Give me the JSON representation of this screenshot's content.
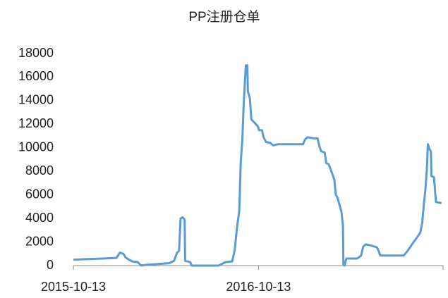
{
  "chart_data": {
    "type": "line",
    "title": "PP注册仓单",
    "x": [
      "2015-10-13",
      "2016-01-06",
      "2016-01-13",
      "2016-01-20",
      "2016-01-24",
      "2016-01-31",
      "2016-02-07",
      "2016-02-17",
      "2016-02-24",
      "2016-03-02",
      "2016-04-19",
      "2016-04-29",
      "2016-05-05",
      "2016-05-09",
      "2016-05-12",
      "2016-05-16",
      "2016-05-20",
      "2016-05-21",
      "2016-05-31",
      "2016-06-03",
      "2016-07-26",
      "2016-08-09",
      "2016-08-22",
      "2016-08-27",
      "2016-09-01",
      "2016-09-05",
      "2016-09-08",
      "2016-09-11",
      "2016-09-14",
      "2016-09-18",
      "2016-09-21",
      "2016-09-22",
      "2016-09-26",
      "2016-09-29",
      "2016-10-06",
      "2016-10-12",
      "2016-10-14",
      "2016-10-20",
      "2016-10-23",
      "2016-10-28",
      "2016-11-06",
      "2016-11-11",
      "2016-11-21",
      "2017-01-09",
      "2017-01-13",
      "2017-01-18",
      "2017-01-30",
      "2017-02-07",
      "2017-02-10",
      "2017-02-14",
      "2017-02-21",
      "2017-02-24",
      "2017-03-01",
      "2017-03-07",
      "2017-03-12",
      "2017-03-15",
      "2017-03-18",
      "2017-03-22",
      "2017-03-26",
      "2017-03-29",
      "2017-03-30",
      "2017-04-01",
      "2017-04-05",
      "2017-04-26",
      "2017-05-04",
      "2017-05-08",
      "2017-05-13",
      "2017-05-24",
      "2017-06-04",
      "2017-06-07",
      "2017-06-11",
      "2017-07-27",
      "2017-08-03",
      "2017-08-08",
      "2017-08-14",
      "2017-08-21",
      "2017-08-29",
      "2017-09-02",
      "2017-09-05",
      "2017-09-08",
      "2017-09-11",
      "2017-09-13",
      "2017-09-16",
      "2017-09-19",
      "2017-09-20",
      "2017-09-25",
      "2017-09-29",
      "2017-10-10"
    ],
    "series": [
      {
        "name": "PP注册仓单",
        "color": "#5b9bd5",
        "values": [
          500,
          650,
          1100,
          1000,
          700,
          500,
          350,
          300,
          0,
          50,
          200,
          400,
          1100,
          1250,
          4000,
          4100,
          3900,
          400,
          300,
          0,
          0,
          300,
          350,
          1300,
          3400,
          4600,
          8800,
          10600,
          13900,
          17000,
          17000,
          14800,
          14200,
          12400,
          12100,
          11800,
          11500,
          11500,
          10900,
          10500,
          10400,
          10200,
          10300,
          10300,
          10700,
          10900,
          10800,
          10800,
          10200,
          9700,
          9600,
          8700,
          8600,
          7900,
          7300,
          6000,
          5800,
          5200,
          4600,
          3400,
          100,
          0,
          600,
          600,
          850,
          1600,
          1800,
          1700,
          1550,
          1300,
          850,
          850,
          1200,
          1500,
          1900,
          2300,
          2800,
          3700,
          5200,
          6400,
          8200,
          10300,
          9900,
          9700,
          7600,
          7500,
          5400,
          5300
        ]
      }
    ],
    "xlim": [
      "2015-10-13",
      "2017-10-13"
    ],
    "xticks": [
      "2015-10-13",
      "2016-10-13"
    ],
    "ylim": [
      0,
      18000
    ],
    "yticks": [
      0,
      2000,
      4000,
      6000,
      8000,
      10000,
      12000,
      14000,
      16000,
      18000
    ]
  }
}
